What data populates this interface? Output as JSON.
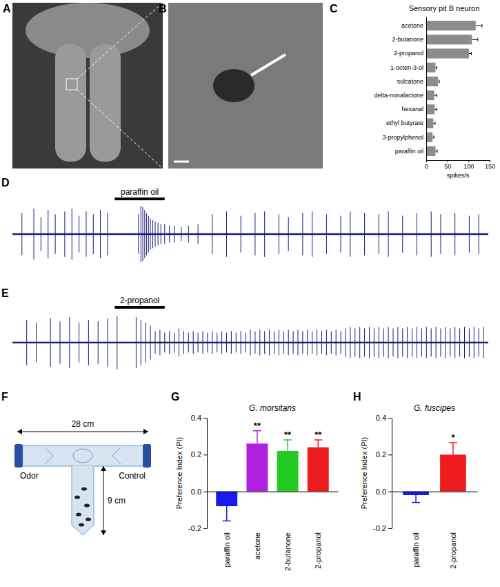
{
  "chart_data": [
    {
      "type": "bar",
      "panel": "C",
      "title": "Sensory pit B neuron",
      "orientation": "horizontal",
      "categories": [
        "acetone",
        "2-butanone",
        "2-propanol",
        "1-octen-3-ol",
        "sulcatone",
        "delta-nonalactone",
        "hexanal",
        "ethyl butyrate",
        "3-propylphenol",
        "paraffin oil"
      ],
      "values": [
        117,
        108,
        101,
        22,
        28,
        19,
        20,
        17,
        15,
        22
      ],
      "errors": [
        15,
        14,
        6,
        3,
        3,
        6,
        5,
        4,
        3,
        4
      ],
      "color": "#8c8c8c",
      "x_label": "spikes/s",
      "xlim": [
        0,
        150
      ],
      "xticks": [
        0,
        50,
        100,
        150
      ]
    },
    {
      "type": "trace",
      "panel": "D",
      "color": "#1a1a7a",
      "tick_labels": false,
      "stimulus": {
        "label": "paraffin oil",
        "start": 21.5,
        "end": 32
      },
      "xlim": [
        0,
        100
      ],
      "ylim": [
        -1,
        1
      ],
      "x": [
        2,
        4.5,
        6,
        7.5,
        9,
        11,
        12.5,
        14,
        15.5,
        17,
        18.5,
        20,
        26.5,
        27,
        27.4,
        27.8,
        28.2,
        28.6,
        29,
        29.5,
        30,
        30.6,
        31.2,
        32,
        33,
        34,
        35.5,
        37,
        39,
        42,
        45,
        48,
        51,
        53,
        56,
        58,
        61,
        63,
        66,
        69,
        71,
        74,
        77,
        79,
        82,
        85,
        88,
        90,
        93,
        96,
        98
      ],
      "values": [
        0.75,
        0.9,
        0.6,
        0.85,
        0.7,
        0.8,
        0.9,
        0.65,
        0.8,
        0.7,
        0.85,
        0.75,
        0.7,
        1.0,
        0.95,
        0.85,
        0.75,
        0.65,
        0.55,
        0.5,
        0.45,
        0.4,
        0.35,
        0.35,
        0.3,
        0.3,
        0.25,
        0.3,
        0.35,
        0.7,
        0.8,
        0.65,
        0.75,
        0.8,
        0.7,
        0.6,
        0.75,
        0.8,
        0.7,
        0.65,
        0.8,
        0.75,
        0.7,
        0.8,
        0.65,
        0.75,
        0.8,
        0.7,
        0.75,
        0.65,
        0.7
      ]
    },
    {
      "type": "trace",
      "panel": "E",
      "color": "#1a1a7a",
      "tick_labels": false,
      "stimulus": {
        "label": "2-propanol",
        "start": 21.5,
        "end": 32
      },
      "xlim": [
        0,
        100
      ],
      "ylim": [
        -1,
        1
      ],
      "x": [
        3,
        5,
        8,
        10,
        12,
        14,
        16,
        18,
        20,
        22,
        26,
        27,
        28,
        29,
        30,
        31,
        32,
        33,
        34,
        35,
        36,
        37,
        38,
        39,
        40,
        41,
        42,
        43,
        44,
        45,
        46,
        47,
        48,
        49,
        50,
        51,
        52,
        53,
        54,
        55,
        56,
        57,
        58,
        59,
        60,
        61,
        62,
        63,
        64,
        65,
        66,
        67,
        68,
        69,
        70,
        71,
        72,
        73,
        74,
        75,
        76,
        77,
        78,
        79,
        80,
        81,
        82,
        83,
        84,
        85,
        86,
        87,
        88,
        89,
        90,
        91,
        92,
        93,
        94,
        95,
        96,
        97,
        98,
        99
      ],
      "values": [
        0.8,
        0.7,
        0.85,
        0.75,
        0.9,
        0.7,
        0.8,
        0.75,
        0.85,
        0.95,
        0.9,
        0.8,
        0.7,
        0.6,
        0.4,
        0.45,
        0.35,
        0.4,
        0.35,
        0.5,
        0.4,
        0.35,
        0.4,
        0.35,
        0.4,
        0.35,
        0.4,
        0.35,
        0.4,
        0.35,
        0.4,
        0.35,
        0.4,
        0.35,
        0.45,
        0.4,
        0.45,
        0.4,
        0.45,
        0.4,
        0.45,
        0.4,
        0.45,
        0.4,
        0.45,
        0.4,
        0.45,
        0.4,
        0.45,
        0.4,
        0.45,
        0.4,
        0.45,
        0.4,
        0.5,
        0.55,
        0.5,
        0.55,
        0.5,
        0.55,
        0.5,
        0.55,
        0.5,
        0.55,
        0.5,
        0.55,
        0.5,
        0.55,
        0.5,
        0.55,
        0.5,
        0.55,
        0.5,
        0.55,
        0.5,
        0.55,
        0.5,
        0.55,
        0.5,
        0.55,
        0.5,
        0.55,
        0.5,
        0.55
      ]
    },
    {
      "type": "bar",
      "panel": "G",
      "title": "G. morsitans",
      "categories": [
        "paraffin oil",
        "acetone",
        "2-butanone",
        "2-propanol"
      ],
      "values": [
        -0.08,
        0.26,
        0.22,
        0.24
      ],
      "errors": [
        0.08,
        0.07,
        0.06,
        0.04
      ],
      "significance": [
        null,
        "**",
        "**",
        "**"
      ],
      "colors": [
        "#1a1aee",
        "#b020e0",
        "#22cc22",
        "#ee1c1c"
      ],
      "y_label": "Preference Index (PI)",
      "ylim": [
        -0.2,
        0.4
      ],
      "yticks": [
        -0.2,
        {
          "value": 0,
          "label": "0.0"
        },
        0.2,
        0.4
      ]
    },
    {
      "type": "bar",
      "panel": "H",
      "title": "G. fuscipes",
      "categories": [
        "paraffin oil",
        "2-propanol"
      ],
      "values": [
        -0.02,
        0.2
      ],
      "errors": [
        0.04,
        0.065
      ],
      "significance": [
        null,
        "*"
      ],
      "colors": [
        "#1a1aee",
        "#ee1c1c"
      ],
      "y_label": "Preference Index (PI)",
      "ylim": [
        -0.2,
        0.4
      ],
      "yticks": [
        -0.2,
        {
          "value": 0,
          "label": "0.0"
        },
        0.2,
        0.4
      ]
    }
  ],
  "images": [
    {
      "panel": "A"
    },
    {
      "panel": "B"
    }
  ],
  "diagram": {
    "panel": "F",
    "length_label": "28 cm",
    "height_label": "9 cm",
    "left_label": "Odor",
    "right_label": "Control"
  }
}
